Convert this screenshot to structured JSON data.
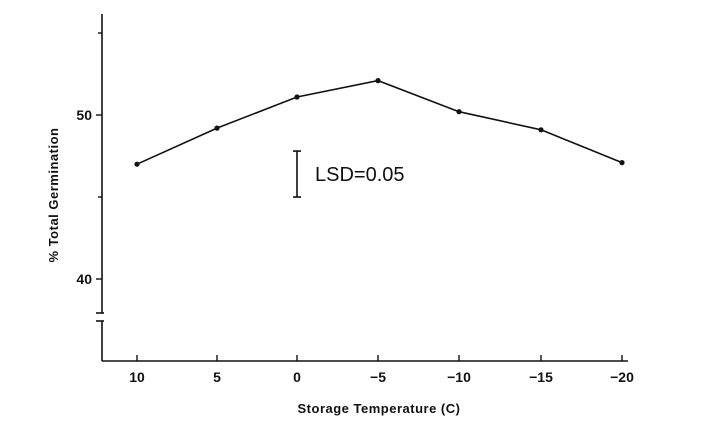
{
  "chart_data": {
    "type": "line",
    "title": "",
    "xlabel": "Storage Temperature (C)",
    "ylabel": "% Total Germination",
    "x": [
      10,
      5,
      0,
      -5,
      -10,
      -15,
      -20
    ],
    "x_tick_labels": [
      "10",
      "5",
      "0",
      "−5",
      "−10",
      "−15",
      "−20"
    ],
    "y_ticks": [
      40,
      50
    ],
    "y_tick_labels": [
      "40",
      "50"
    ],
    "ylim": [
      38,
      55
    ],
    "y_axis_break": true,
    "grid": false,
    "series": [
      {
        "values": [
          47.0,
          49.2,
          51.1,
          52.1,
          50.2,
          49.1,
          47.1
        ]
      }
    ],
    "annotations": [
      {
        "text": "LSD=0.05",
        "kind": "error-bar",
        "x": 0.25,
        "y_low": 45.0,
        "y_high": 47.8
      }
    ]
  }
}
